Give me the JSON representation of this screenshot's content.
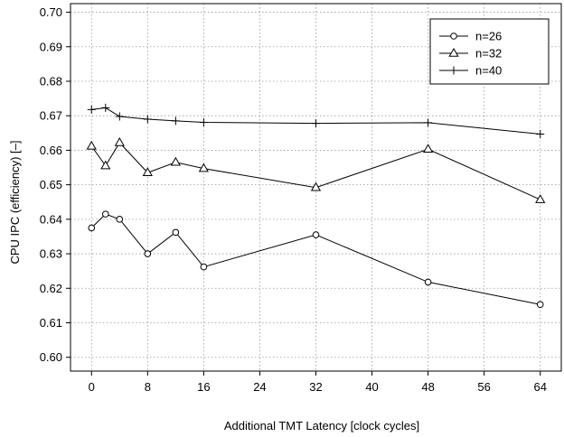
{
  "chart_data": {
    "type": "line",
    "title": "",
    "xlabel": "Additional TMT Latency [clock cycles]",
    "ylabel": "CPU IPC (efficiency) [–]",
    "xlim": [
      -3,
      67
    ],
    "ylim": [
      0.596,
      0.7025
    ],
    "xticks": [
      0,
      8,
      16,
      24,
      32,
      40,
      48,
      56,
      64
    ],
    "xtick_labels": [
      "0",
      "8",
      "16",
      "24",
      "32",
      "40",
      "48",
      "56",
      "64"
    ],
    "yticks": [
      0.6,
      0.61,
      0.62,
      0.63,
      0.64,
      0.65,
      0.66,
      0.67,
      0.68,
      0.69,
      0.7
    ],
    "ytick_labels": [
      "0.60",
      "0.61",
      "0.62",
      "0.63",
      "0.64",
      "0.65",
      "0.66",
      "0.67",
      "0.68",
      "0.69",
      "0.70"
    ],
    "grid": true,
    "grid_style": "dotted",
    "legend_position": "top-right",
    "x": [
      0,
      2,
      4,
      8,
      12,
      16,
      32,
      48,
      64
    ],
    "series": [
      {
        "name": "n=26",
        "marker": "circle",
        "color": "#000000",
        "values": [
          0.6375,
          0.6415,
          0.64,
          0.63,
          0.6362,
          0.6262,
          0.6355,
          0.6218,
          0.6153
        ]
      },
      {
        "name": "n=32",
        "marker": "triangle",
        "color": "#000000",
        "values": [
          0.6612,
          0.6555,
          0.6622,
          0.6535,
          0.6565,
          0.6547,
          0.6492,
          0.6603,
          0.6457
        ]
      },
      {
        "name": "n=40",
        "marker": "plus",
        "color": "#000000",
        "values": [
          0.6718,
          0.6723,
          0.6698,
          0.669,
          0.6685,
          0.6681,
          0.6678,
          0.668,
          0.6647
        ]
      }
    ]
  }
}
